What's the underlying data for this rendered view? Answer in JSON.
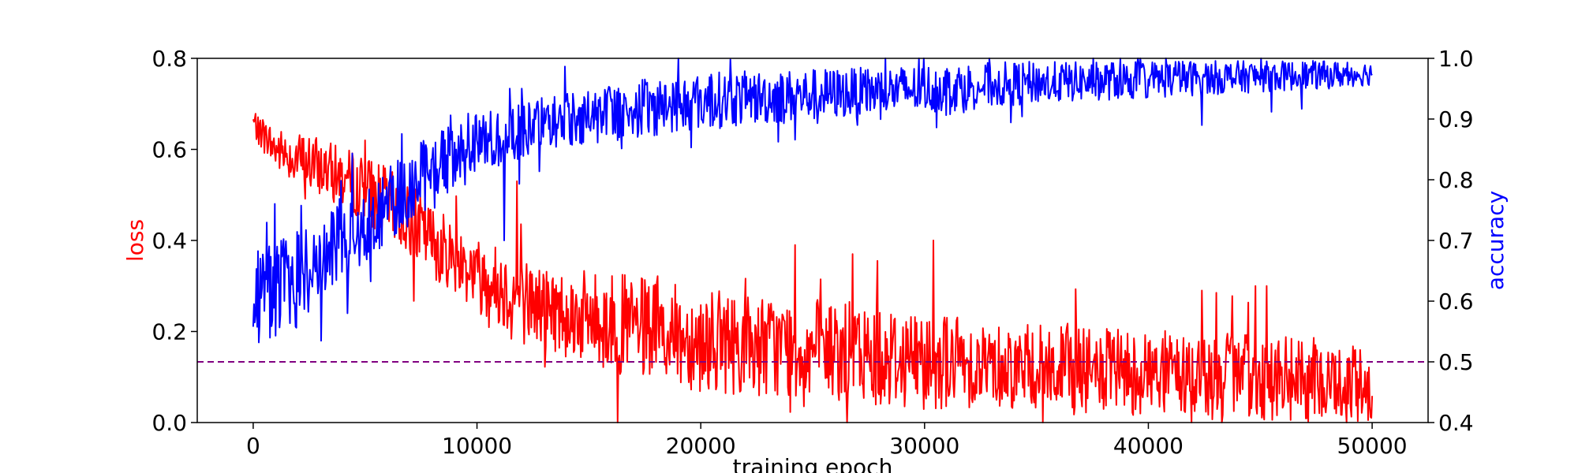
{
  "chart_data": {
    "type": "line",
    "xlabel": "training epoch",
    "ylabel_left": "loss",
    "ylabel_right": "accuracy",
    "xlim": [
      -2500,
      52500
    ],
    "ylim_left": [
      0.0,
      0.8
    ],
    "ylim_right": [
      0.4,
      1.0
    ],
    "x_ticks": [
      0,
      10000,
      20000,
      30000,
      40000,
      50000
    ],
    "x_tick_labels": [
      "0",
      "10000",
      "20000",
      "30000",
      "40000",
      "50000"
    ],
    "y_left_ticks": [
      0.0,
      0.2,
      0.4,
      0.6,
      0.8
    ],
    "y_left_tick_labels": [
      "0.0",
      "0.2",
      "0.4",
      "0.6",
      "0.8"
    ],
    "y_right_ticks": [
      0.4,
      0.5,
      0.6,
      0.7,
      0.8,
      0.9,
      1.0
    ],
    "y_right_tick_labels": [
      "0.4",
      "0.5",
      "0.6",
      "0.7",
      "0.8",
      "0.9",
      "1.0"
    ],
    "grid": false,
    "legend": "none",
    "reference_line": {
      "axis": "right",
      "y": 0.5,
      "style": "dashed",
      "color": "#800080"
    },
    "series": [
      {
        "axis": "left",
        "color": "#ff0000",
        "x": [
          0,
          1000,
          2500,
          4000,
          5500,
          7000,
          8500,
          10000,
          12000,
          14000,
          16000,
          18000,
          20000,
          22500,
          25000,
          27500,
          30000,
          32500,
          35000,
          37500,
          40000,
          42500,
          45000,
          47500,
          50000
        ],
        "values": [
          0.66,
          0.6,
          0.57,
          0.54,
          0.5,
          0.44,
          0.38,
          0.33,
          0.27,
          0.24,
          0.22,
          0.2,
          0.18,
          0.17,
          0.16,
          0.15,
          0.14,
          0.13,
          0.12,
          0.11,
          0.11,
          0.1,
          0.1,
          0.09,
          0.08
        ],
        "noise": [
          0.02,
          0.03,
          0.04,
          0.04,
          0.05,
          0.05,
          0.05,
          0.05,
          0.06,
          0.06,
          0.07,
          0.07,
          0.07,
          0.07,
          0.07,
          0.07,
          0.07,
          0.06,
          0.06,
          0.06,
          0.06,
          0.06,
          0.06,
          0.06,
          0.05
        ],
        "spikes": [
          {
            "x": 11800,
            "value": 0.53
          },
          {
            "x": 24200,
            "value": 0.39
          },
          {
            "x": 30400,
            "value": 0.4
          },
          {
            "x": 26800,
            "value": 0.37
          },
          {
            "x": 44800,
            "value": 0.3
          },
          {
            "x": 45300,
            "value": 0.3
          },
          {
            "x": 42400,
            "value": 0.29
          },
          {
            "x": 5000,
            "value": 0.62
          }
        ]
      },
      {
        "axis": "right",
        "color": "#0000ff",
        "x": [
          0,
          1000,
          2500,
          4000,
          5500,
          7000,
          8500,
          10000,
          12000,
          14000,
          16000,
          18000,
          20000,
          22500,
          25000,
          27500,
          30000,
          32500,
          35000,
          37500,
          40000,
          42500,
          45000,
          47500,
          50000
        ],
        "values": [
          0.6,
          0.62,
          0.65,
          0.7,
          0.74,
          0.79,
          0.83,
          0.86,
          0.88,
          0.9,
          0.91,
          0.92,
          0.93,
          0.935,
          0.94,
          0.945,
          0.95,
          0.955,
          0.96,
          0.962,
          0.965,
          0.968,
          0.97,
          0.972,
          0.975
        ],
        "noise": [
          0.05,
          0.05,
          0.05,
          0.04,
          0.04,
          0.04,
          0.035,
          0.03,
          0.03,
          0.03,
          0.03,
          0.03,
          0.03,
          0.028,
          0.027,
          0.025,
          0.025,
          0.024,
          0.022,
          0.02,
          0.02,
          0.018,
          0.016,
          0.015,
          0.012
        ],
        "spikes": [
          {
            "x": 11200,
            "value": 0.7
          },
          {
            "x": 4200,
            "value": 0.58
          },
          {
            "x": 17200,
            "value": 0.88
          },
          {
            "x": 27000,
            "value": 0.89
          },
          {
            "x": 42400,
            "value": 0.89
          },
          {
            "x": 19000,
            "value": 1.0
          }
        ]
      }
    ]
  }
}
